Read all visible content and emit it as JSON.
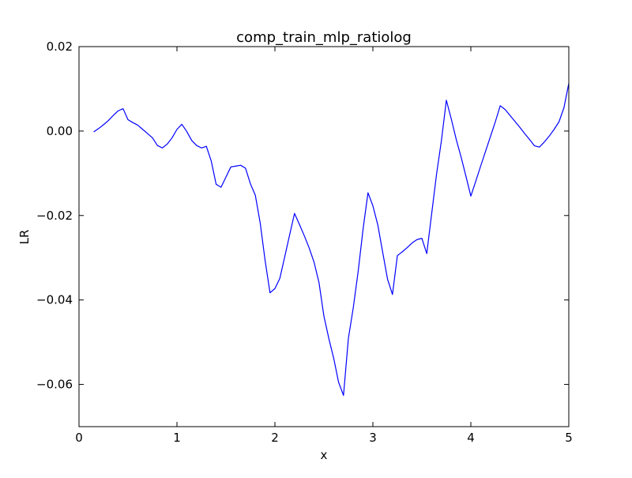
{
  "chart_data": {
    "type": "line",
    "title": "comp_train_mlp_ratiolog",
    "xlabel": "x",
    "ylabel": "LR",
    "xlim": [
      0,
      5
    ],
    "ylim": [
      -0.07,
      0.02
    ],
    "x_ticks": [
      0,
      1,
      2,
      3,
      4,
      5
    ],
    "x_tick_labels": [
      "0",
      "1",
      "2",
      "3",
      "4",
      "5"
    ],
    "y_ticks": [
      -0.06,
      -0.04,
      -0.02,
      0.0,
      0.02
    ],
    "y_tick_labels": [
      "−0.06",
      "−0.04",
      "−0.02",
      "0.00",
      "0.02"
    ],
    "grid": false,
    "series": [
      {
        "color": "#0000ff",
        "x": [
          0.15,
          0.2,
          0.25,
          0.3,
          0.35,
          0.4,
          0.45,
          0.5,
          0.55,
          0.6,
          0.65,
          0.7,
          0.75,
          0.8,
          0.85,
          0.9,
          0.95,
          1.0,
          1.05,
          1.1,
          1.15,
          1.2,
          1.25,
          1.3,
          1.35,
          1.4,
          1.45,
          1.5,
          1.55,
          1.6,
          1.65,
          1.7,
          1.75,
          1.8,
          1.85,
          1.9,
          1.95,
          2.0,
          2.05,
          2.1,
          2.15,
          2.2,
          2.25,
          2.3,
          2.35,
          2.4,
          2.45,
          2.5,
          2.55,
          2.6,
          2.65,
          2.7,
          2.75,
          2.8,
          2.85,
          2.9,
          2.95,
          3.0,
          3.05,
          3.1,
          3.15,
          3.2,
          3.25,
          3.3,
          3.35,
          3.4,
          3.45,
          3.5,
          3.55,
          3.6,
          3.65,
          3.7,
          3.75,
          3.8,
          3.85,
          3.9,
          3.95,
          4.0,
          4.05,
          4.1,
          4.15,
          4.2,
          4.25,
          4.3,
          4.35,
          4.4,
          4.45,
          4.5,
          4.55,
          4.6,
          4.65,
          4.7,
          4.75,
          4.8,
          4.85,
          4.9,
          4.95,
          5.0
        ],
        "y": [
          -0.0002,
          0.0006,
          0.0015,
          0.0025,
          0.0037,
          0.0048,
          0.0053,
          0.0027,
          0.002,
          0.0014,
          0.0004,
          -0.0006,
          -0.0016,
          -0.0034,
          -0.004,
          -0.0031,
          -0.0016,
          0.0004,
          0.0016,
          -0.0001,
          -0.0022,
          -0.0034,
          -0.004,
          -0.0036,
          -0.0071,
          -0.0126,
          -0.0133,
          -0.0109,
          -0.0085,
          -0.0083,
          -0.0081,
          -0.0088,
          -0.0125,
          -0.0152,
          -0.0218,
          -0.0307,
          -0.0383,
          -0.0373,
          -0.0349,
          -0.0298,
          -0.0246,
          -0.0195,
          -0.0221,
          -0.0248,
          -0.0277,
          -0.0311,
          -0.0359,
          -0.0438,
          -0.0491,
          -0.0538,
          -0.0595,
          -0.0626,
          -0.0491,
          -0.0418,
          -0.0332,
          -0.0232,
          -0.0146,
          -0.0177,
          -0.0222,
          -0.0287,
          -0.0351,
          -0.0387,
          -0.0295,
          -0.0286,
          -0.0276,
          -0.0265,
          -0.0257,
          -0.0254,
          -0.029,
          -0.0196,
          -0.0102,
          -0.0022,
          0.0073,
          0.0029,
          -0.0019,
          -0.0061,
          -0.0107,
          -0.0154,
          -0.0119,
          -0.0083,
          -0.0048,
          -0.0013,
          0.0022,
          0.006,
          0.0051,
          0.0037,
          0.0023,
          0.0009,
          -0.0006,
          -0.002,
          -0.0035,
          -0.0038,
          -0.0026,
          -0.0012,
          0.0004,
          0.0022,
          0.0055,
          0.0113
        ]
      }
    ]
  }
}
